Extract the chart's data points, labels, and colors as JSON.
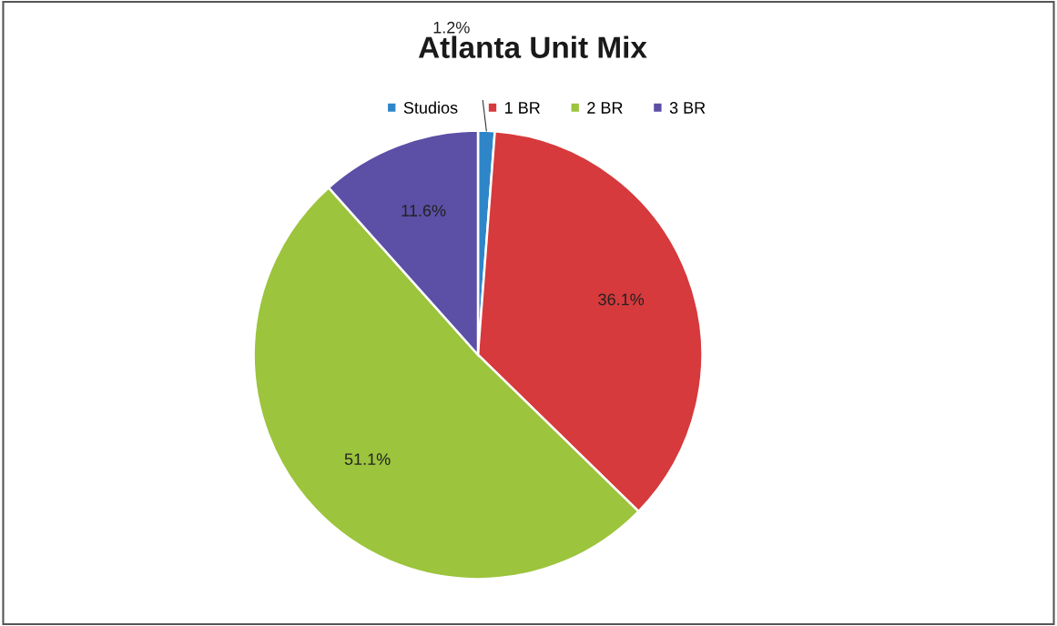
{
  "chart_data": {
    "type": "pie",
    "title": "Atlanta Unit Mix",
    "categories": [
      "Studios",
      "1 BR",
      "2 BR",
      "3 BR"
    ],
    "values": [
      1.2,
      36.1,
      51.1,
      11.6
    ],
    "colors": [
      "#2e86c8",
      "#d63a3c",
      "#9cc43c",
      "#5b4fa6"
    ],
    "value_labels": [
      "1.2%",
      "36.1%",
      "51.1%",
      "11.6%"
    ],
    "legend": "top"
  }
}
